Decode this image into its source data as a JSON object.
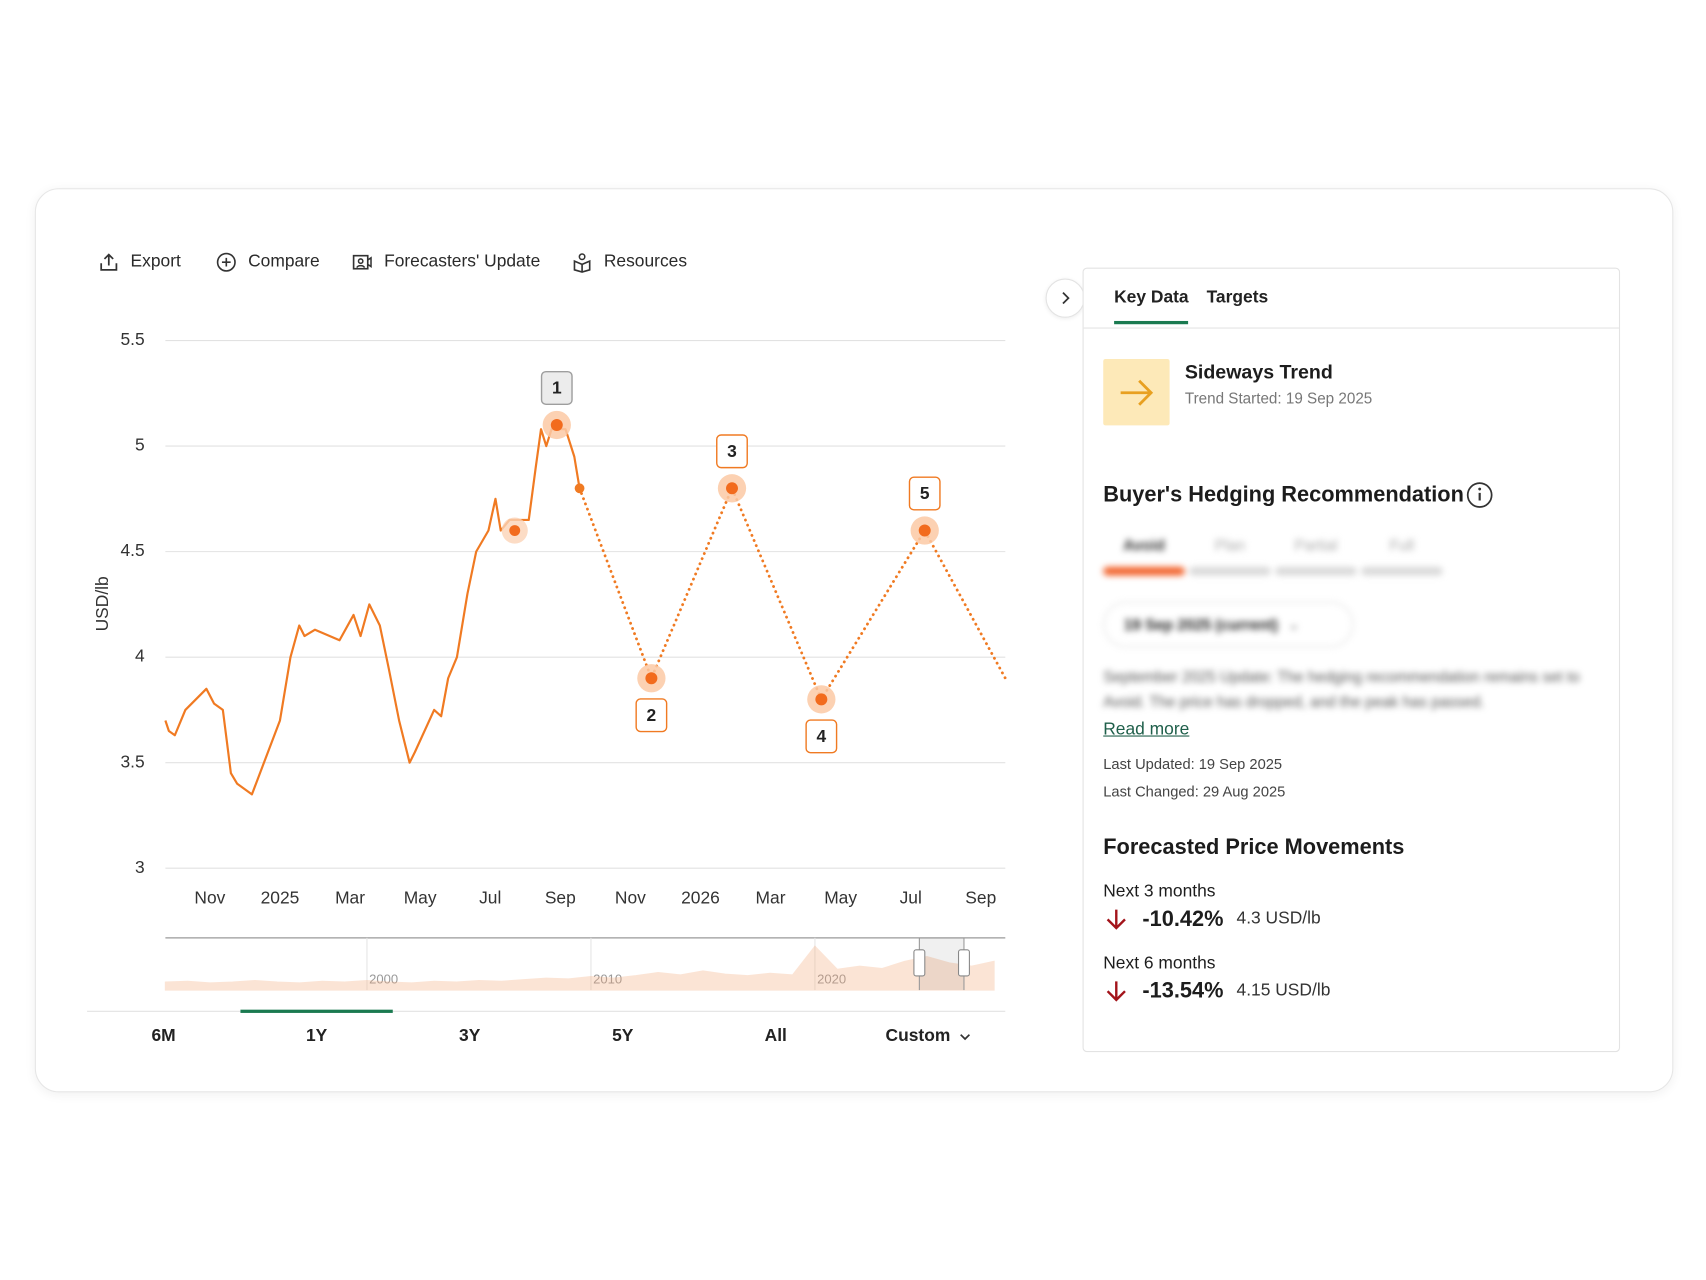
{
  "toolbar": [
    "Export",
    "Compare",
    "Forecasters' Update",
    "Resources"
  ],
  "chart_data": {
    "type": "line",
    "y_label": "USD/lb",
    "xlim": [
      -1.27,
      22.7
    ],
    "xticks": [
      {
        "value": 0,
        "label": "Nov"
      },
      {
        "value": 2,
        "label": "2025"
      },
      {
        "value": 4,
        "label": "Mar"
      },
      {
        "value": 6,
        "label": "May"
      },
      {
        "value": 8,
        "label": "Jul"
      },
      {
        "value": 10,
        "label": "Sep"
      },
      {
        "value": 12,
        "label": "Nov"
      },
      {
        "value": 14,
        "label": "2026"
      },
      {
        "value": 16,
        "label": "Mar"
      },
      {
        "value": 18,
        "label": "May"
      },
      {
        "value": 20,
        "label": "Jul"
      },
      {
        "value": 22,
        "label": "Sep"
      }
    ],
    "ylim": [
      3,
      5.5
    ],
    "yticks": [
      3,
      3.5,
      4,
      4.5,
      5,
      5.5
    ],
    "grid": true,
    "series": [
      {
        "color": "#f07a22",
        "style": "solid",
        "x": [
          -1.27,
          -1.17,
          -1.0,
          -0.7,
          -0.1,
          0.12,
          0.37,
          0.6,
          0.78,
          1.2,
          2.0,
          2.3,
          2.55,
          2.7,
          3.0,
          3.7,
          4.1,
          4.3,
          4.55,
          4.85,
          5.1,
          5.4,
          5.7,
          5.85,
          6.4,
          6.6,
          6.8,
          7.05,
          7.35,
          7.6,
          7.95,
          8.15,
          8.3,
          8.55,
          9.1,
          9.3,
          9.45,
          9.6,
          9.75,
          10.15,
          10.4,
          10.55
        ],
        "values": [
          3.7,
          3.65,
          3.63,
          3.75,
          3.85,
          3.78,
          3.75,
          3.45,
          3.4,
          3.35,
          3.7,
          4.0,
          4.15,
          4.1,
          4.13,
          4.08,
          4.2,
          4.1,
          4.25,
          4.15,
          3.95,
          3.7,
          3.5,
          3.55,
          3.75,
          3.72,
          3.9,
          4.0,
          4.3,
          4.5,
          4.6,
          4.75,
          4.6,
          4.65,
          4.65,
          4.9,
          5.08,
          5.0,
          5.08,
          5.08,
          4.95,
          4.8
        ]
      },
      {
        "color": "#f07a22",
        "style": "dotted",
        "x": [
          10.55,
          12.6,
          14.9,
          17.45,
          20.4,
          22.7
        ],
        "values": [
          4.8,
          3.9,
          4.8,
          3.8,
          4.6,
          3.9
        ]
      }
    ],
    "highlight": {
      "x": 8.7,
      "value": 4.6
    },
    "annotations": [
      {
        "label": "1",
        "x": 9.9,
        "value": 5.1,
        "position": "above",
        "color": "#9e9e9e"
      },
      {
        "label": "2",
        "x": 12.6,
        "value": 3.9,
        "position": "below",
        "color": "#f07a22"
      },
      {
        "label": "3",
        "x": 14.9,
        "value": 4.8,
        "position": "above",
        "color": "#f07a22"
      },
      {
        "label": "4",
        "x": 17.45,
        "value": 3.8,
        "position": "below",
        "color": "#f07a22"
      },
      {
        "label": "5",
        "x": 20.4,
        "value": 4.6,
        "position": "above",
        "color": "#f07a22"
      }
    ],
    "navigator": {
      "xlim": [
        1991,
        2028.5
      ],
      "xticks": [
        2000,
        2010,
        2020
      ],
      "ylim": [
        0,
        6
      ],
      "color": "#f5a878",
      "x": [
        1991,
        1992,
        1993,
        1994,
        1995,
        1996,
        1997,
        1998,
        1999,
        2000,
        2001,
        2002,
        2003,
        2004,
        2005,
        2006,
        2007,
        2008,
        2009,
        2010,
        2011,
        2012,
        2013,
        2014,
        2015,
        2016,
        2017,
        2018,
        2019,
        2020,
        2021,
        2022,
        2023,
        2024,
        2025,
        2026,
        2027,
        2028
      ],
      "values": [
        1.0,
        1.1,
        0.9,
        1.0,
        1.2,
        1.0,
        0.9,
        1.1,
        1.0,
        1.2,
        1.0,
        0.9,
        1.1,
        1.0,
        1.2,
        1.1,
        1.3,
        1.5,
        1.4,
        1.7,
        1.5,
        1.8,
        2.2,
        1.9,
        2.4,
        2.0,
        1.8,
        2.1,
        1.9,
        5.5,
        2.6,
        3.0,
        2.7,
        3.6,
        4.2,
        3.4,
        3.0,
        3.6
      ]
    }
  },
  "range_tabs": {
    "options": [
      "6M",
      "1Y",
      "3Y",
      "5Y",
      "All",
      "Custom"
    ],
    "selected_index": 1
  },
  "panel": {
    "tabs": [
      "Key Data",
      "Targets"
    ],
    "active_tab": 0,
    "trend": {
      "title": "Sideways Trend",
      "subtitle": "Trend Started: 19 Sep 2025"
    },
    "hedging": {
      "title": "Buyer's Hedging Recommendation",
      "levels": [
        "Avoid",
        "Plan",
        "Partial",
        "Full"
      ],
      "current_level": 0,
      "period": "19 Sep 2025 (current)",
      "summary": "September 2025 Update: The hedging recommendation remains set to Avoid. The price has dropped, and the peak has passed.",
      "read_more": "Read more",
      "last_updated": "Last Updated: 19 Sep 2025",
      "last_changed": "Last Changed: 29 Aug 2025"
    },
    "forecast": {
      "title": "Forecasted Price Movements",
      "rows": [
        {
          "period": "Next 3 months",
          "change": "-10.42%",
          "price": "4.3 USD/lb"
        },
        {
          "period": "Next 6 months",
          "change": "-13.54%",
          "price": "4.15 USD/lb"
        }
      ]
    }
  }
}
